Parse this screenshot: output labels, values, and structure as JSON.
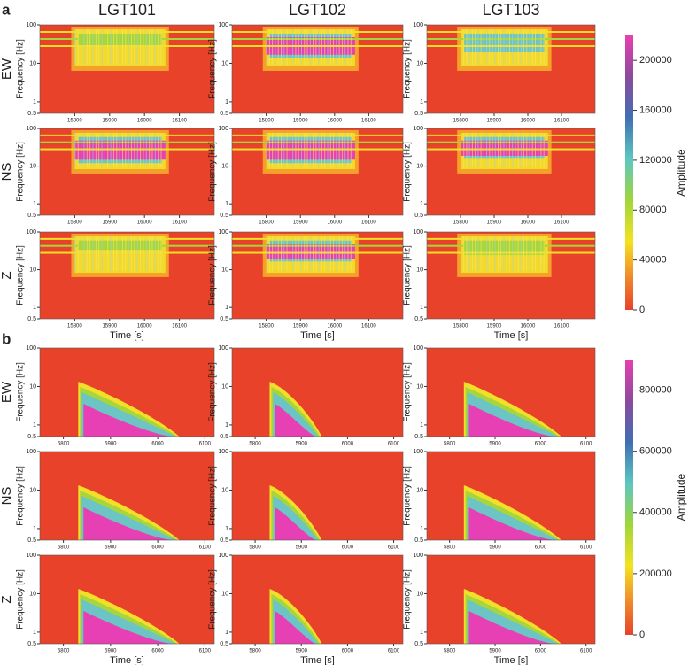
{
  "stations": [
    "LGT101",
    "LGT102",
    "LGT103"
  ],
  "components": [
    "EW",
    "NS",
    "Z"
  ],
  "y_label": "Frequency [Hz]",
  "x_label": "Time [s]",
  "ylim": [
    0.5,
    100
  ],
  "yticks": [
    0.5,
    1,
    10,
    100
  ],
  "log_y": true,
  "panel_a": {
    "label": "a",
    "xlim": [
      15700,
      16200
    ],
    "xticks": [
      15800,
      15900,
      16000,
      16100
    ],
    "colorbar": {
      "label": "Amplitude",
      "lim": [
        0,
        220000
      ],
      "ticks": [
        0,
        40000,
        80000,
        120000,
        160000,
        200000
      ]
    }
  },
  "panel_b": {
    "label": "b",
    "xlim": [
      5750,
      6120
    ],
    "xticks": [
      5800,
      5900,
      6000,
      6100
    ],
    "colorbar": {
      "label": "Amplitude",
      "lim": [
        0,
        900000
      ],
      "ticks": [
        0,
        200000,
        400000,
        600000,
        800000
      ]
    }
  }
}
